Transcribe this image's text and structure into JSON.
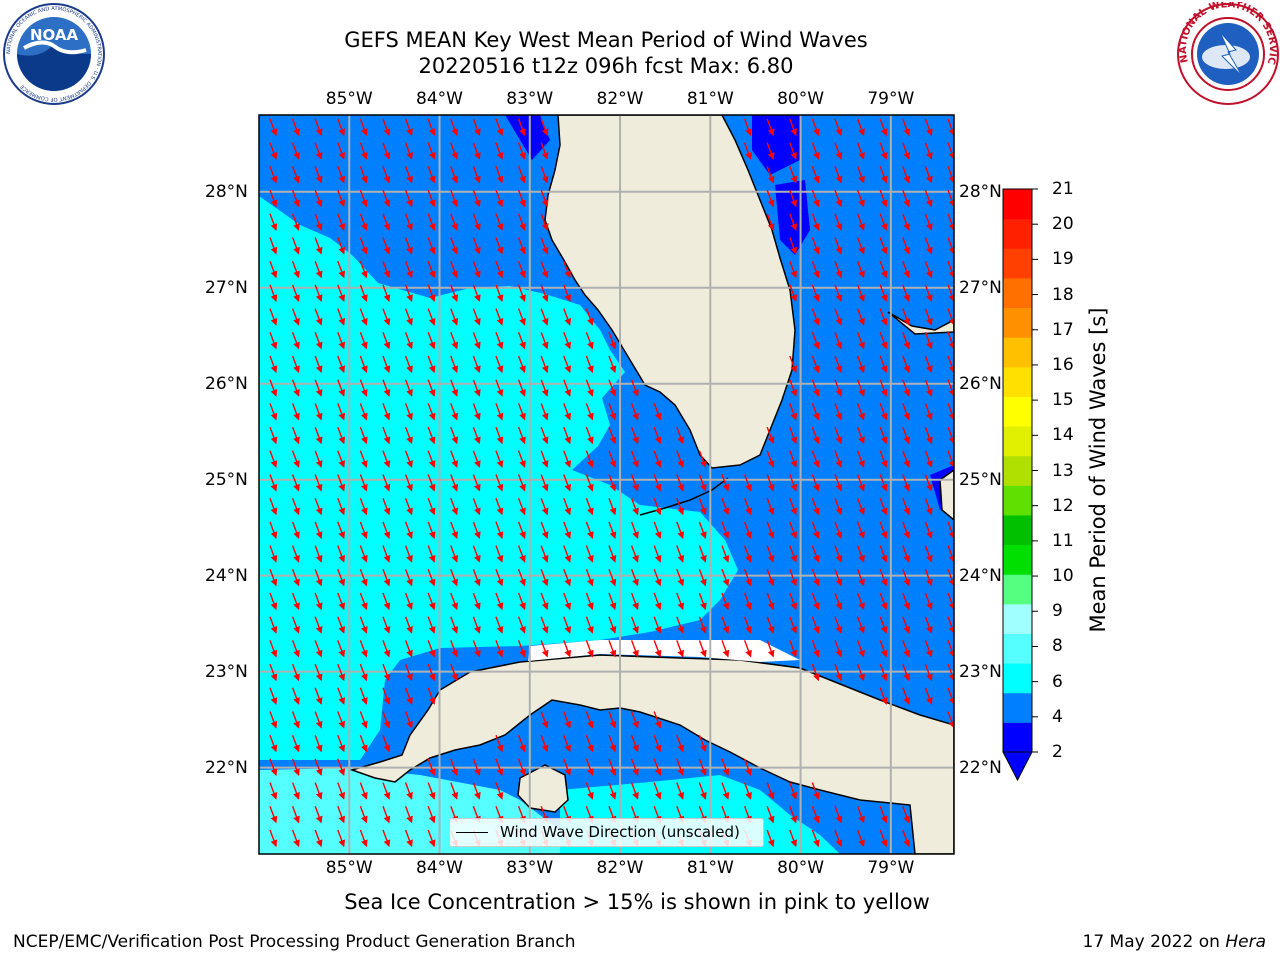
{
  "title": {
    "line1": "GEFS MEAN Key West Mean Period of Wind Waves",
    "line2": "20220516 t12z 096h fcst   Max: 6.80"
  },
  "logos": {
    "noaa_text": "NOAA",
    "noaa_ring": "NATIONAL OCEANIC AND ATMOSPHERIC ADMINISTRATION · U.S. DEPARTMENT OF COMMERCE",
    "nws_ring": "NATIONAL WEATHER SERVICE"
  },
  "map": {
    "lon_ticks": [
      "85°W",
      "84°W",
      "83°W",
      "82°W",
      "81°W",
      "80°W",
      "79°W"
    ],
    "lat_ticks": [
      "28°N",
      "27°N",
      "26°N",
      "25°N",
      "24°N",
      "23°N",
      "22°N"
    ],
    "lon_range": [
      -86.0,
      -78.3
    ],
    "lat_range": [
      21.1,
      28.8
    ],
    "colors": {
      "land": "#efecdc",
      "ocean_blue": "#0080ff",
      "ocean_cyan": "#00ffff",
      "ocean_pale": "#55ffff",
      "deep_blue": "#0000ff",
      "grid": "#b0b0b0",
      "arrow": "#ff0000"
    },
    "arrow_direction_note": "arrows point toward SSE (north-northwesterly wind waves)"
  },
  "colorbar": {
    "label": "Mean Period of Wind Waves [s]",
    "ticks": [
      "21",
      "20",
      "19",
      "18",
      "17",
      "16",
      "15",
      "14",
      "13",
      "12",
      "11",
      "10",
      "9",
      "8",
      "6",
      "4",
      "2"
    ],
    "colors": [
      "#0000ff",
      "#0080ff",
      "#00ffff",
      "#55ffff",
      "#a0ffff",
      "#55ff80",
      "#00e000",
      "#00c000",
      "#60e000",
      "#b0e000",
      "#e0f000",
      "#ffff00",
      "#ffe000",
      "#ffc000",
      "#ff9000",
      "#ff7000",
      "#ff4000",
      "#ff2000",
      "#ff0000"
    ],
    "extend": "min"
  },
  "legend": {
    "label": "Wind Wave Direction (unscaled)"
  },
  "notes": {
    "sea_ice": "Sea Ice Concentration > 15% is shown in pink to yellow",
    "footer_left": "NCEP/EMC/Verification Post Processing Product Generation Branch",
    "footer_date": "17 May 2022 on",
    "footer_host": "Hera"
  }
}
